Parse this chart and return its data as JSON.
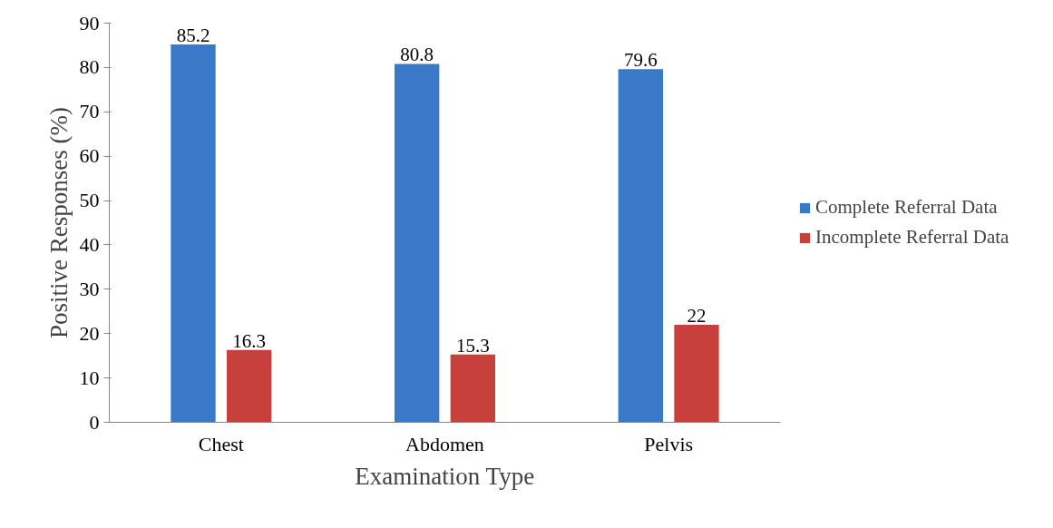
{
  "chart_data": {
    "type": "bar",
    "xlabel": "Examination Type",
    "ylabel": "Positive Responses (%)",
    "categories": [
      "Chest",
      "Abdomen",
      "Pelvis"
    ],
    "series": [
      {
        "name": "Complete Referral Data",
        "color": "#3a78c8",
        "values": [
          85.2,
          80.8,
          79.6
        ]
      },
      {
        "name": "Incomplete Referral Data",
        "color": "#c8403c",
        "values": [
          16.3,
          15.3,
          22
        ]
      }
    ],
    "ylim": [
      0,
      90
    ],
    "yticks": [
      0,
      10,
      20,
      30,
      40,
      50,
      60,
      70,
      80,
      90
    ],
    "grid": false,
    "legend": "right",
    "data_labels": true
  }
}
